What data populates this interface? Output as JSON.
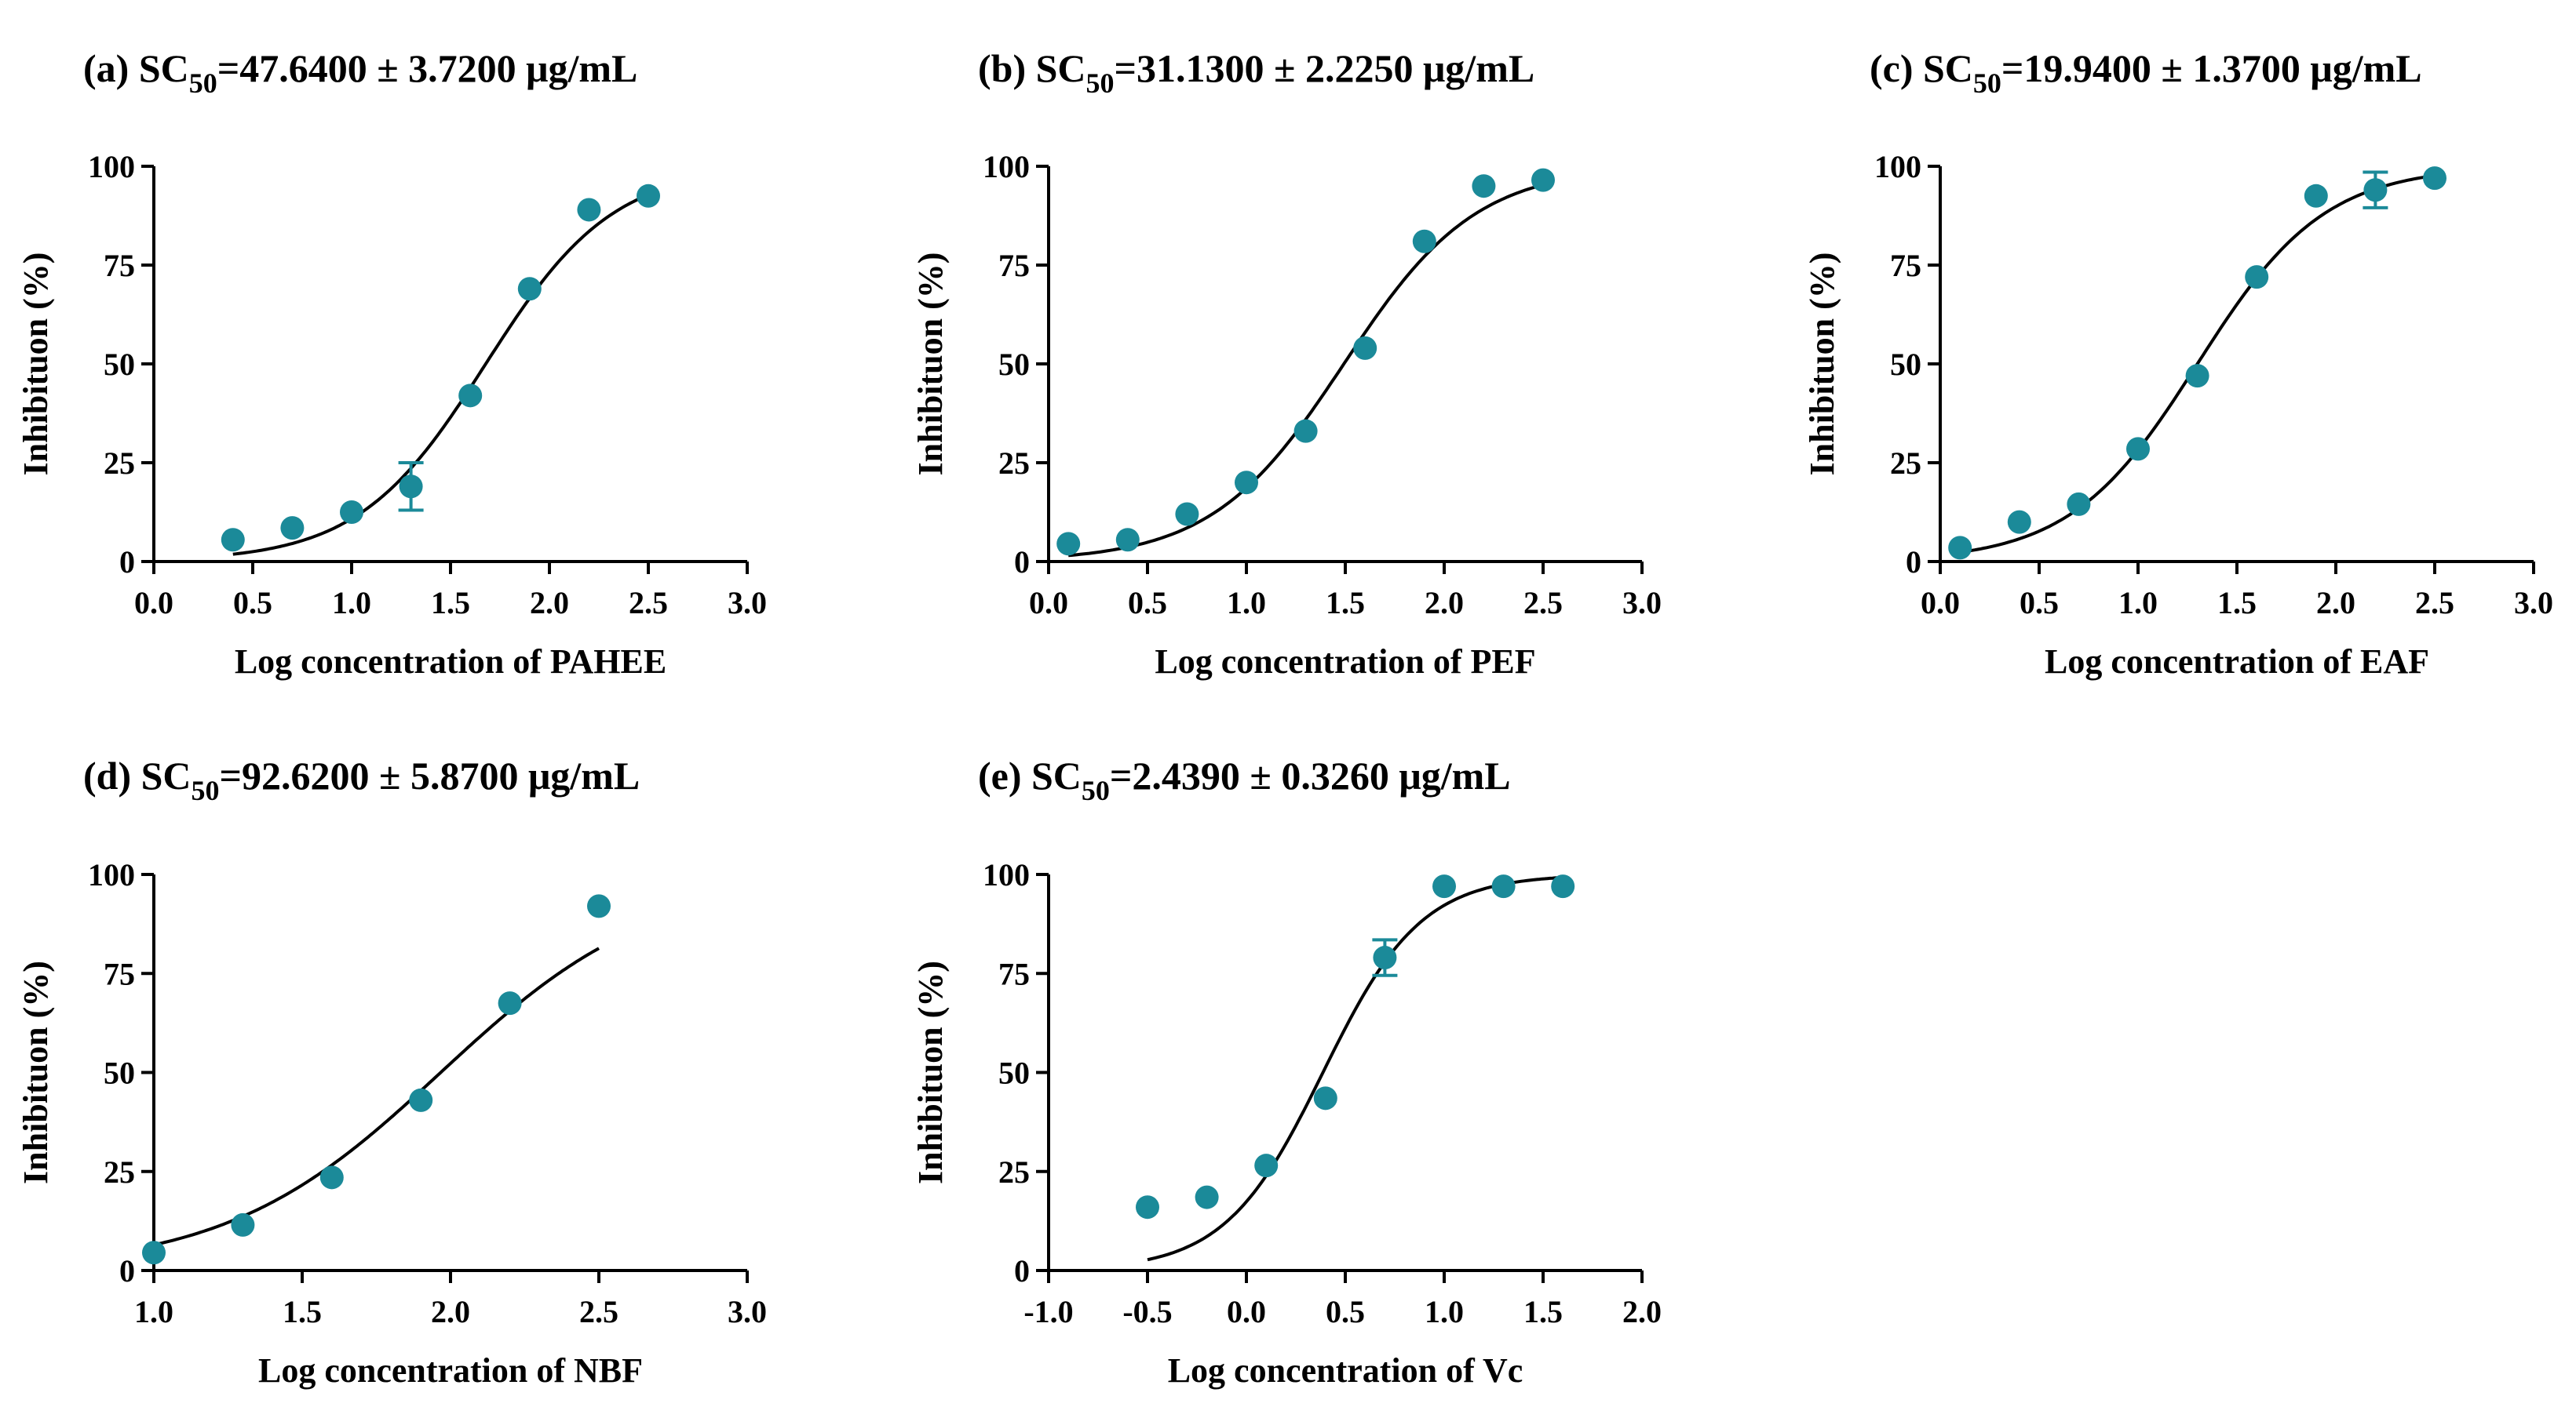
{
  "chart_data": [
    {
      "type": "scatter",
      "panel_label": "(a)",
      "title_prefix": "SC",
      "title_subscript": "50",
      "title_rest": "=47.6400 ± 3.7200 μg/mL",
      "xlabel": "Log concentration of PAHEE",
      "ylabel": "Inhibituon (%)",
      "xlim": [
        0.0,
        3.0
      ],
      "ylim": [
        0,
        100
      ],
      "x_ticks": [
        "0.0",
        "0.5",
        "1.0",
        "1.5",
        "2.0",
        "2.5",
        "3.0"
      ],
      "y_ticks": [
        "0",
        "25",
        "50",
        "75",
        "100"
      ],
      "x": [
        0.4,
        0.7,
        1.0,
        1.3,
        1.6,
        1.9,
        2.2,
        2.5
      ],
      "y": [
        5.5,
        8.5,
        12.5,
        19,
        42,
        69,
        89,
        92.5
      ],
      "err": [
        0,
        0,
        0,
        6,
        0,
        0,
        0,
        0
      ],
      "fit": {
        "bottom": 0,
        "top": 100,
        "logEC50": 1.678,
        "hill": 1.35,
        "x_range": [
          0.4,
          2.5
        ]
      },
      "marker_color": "#1b8a99"
    },
    {
      "type": "scatter",
      "panel_label": "(b)",
      "title_prefix": "SC",
      "title_subscript": "50",
      "title_rest": "=31.1300 ± 2.2250 μg/mL",
      "xlabel": "Log concentration of PEF",
      "ylabel": "Inhibituon (%)",
      "xlim": [
        0.0,
        3.0
      ],
      "ylim": [
        0,
        100
      ],
      "x_ticks": [
        "0.0",
        "0.5",
        "1.0",
        "1.5",
        "2.0",
        "2.5",
        "3.0"
      ],
      "y_ticks": [
        "0",
        "25",
        "50",
        "75",
        "100"
      ],
      "x": [
        0.1,
        0.4,
        0.7,
        1.0,
        1.3,
        1.6,
        1.9,
        2.2,
        2.5
      ],
      "y": [
        4.5,
        5.5,
        12,
        20,
        33,
        54,
        81,
        95,
        96.5
      ],
      "err": [
        0,
        0,
        0,
        0,
        0,
        0,
        0,
        0,
        0
      ],
      "fit": {
        "bottom": 0,
        "top": 100,
        "logEC50": 1.493,
        "hill": 1.3,
        "x_range": [
          0.1,
          2.5
        ]
      },
      "marker_color": "#1b8a99"
    },
    {
      "type": "scatter",
      "panel_label": "(c)",
      "title_prefix": "SC",
      "title_subscript": "50",
      "title_rest": "=19.9400 ± 1.3700 μg/mL",
      "xlabel": "Log concentration of EAF",
      "ylabel": "Inhibituon (%)",
      "xlim": [
        0.0,
        3.0
      ],
      "ylim": [
        0,
        100
      ],
      "x_ticks": [
        "0.0",
        "0.5",
        "1.0",
        "1.5",
        "2.0",
        "2.5",
        "3.0"
      ],
      "y_ticks": [
        "0",
        "25",
        "50",
        "75",
        "100"
      ],
      "x": [
        0.1,
        0.4,
        0.7,
        1.0,
        1.3,
        1.6,
        1.9,
        2.2,
        2.5
      ],
      "y": [
        3.5,
        10,
        14.5,
        28.5,
        47,
        72,
        92.5,
        94,
        97
      ],
      "err": [
        0,
        0,
        0,
        0,
        0,
        0,
        0,
        4.5,
        0
      ],
      "fit": {
        "bottom": 0,
        "top": 100,
        "logEC50": 1.3,
        "hill": 1.35,
        "x_range": [
          0.1,
          2.5
        ]
      },
      "marker_color": "#1b8a99"
    },
    {
      "type": "scatter",
      "panel_label": "(d)",
      "title_prefix": "SC",
      "title_subscript": "50",
      "title_rest": "=92.6200 ± 5.8700 μg/mL",
      "xlabel": "Log concentration of NBF",
      "ylabel": "Inhibituon (%)",
      "xlim": [
        1.0,
        3.0
      ],
      "ylim": [
        0,
        100
      ],
      "x_ticks": [
        "1.0",
        "1.5",
        "2.0",
        "2.5",
        "3.0"
      ],
      "y_ticks": [
        "0",
        "25",
        "50",
        "75",
        "100"
      ],
      "x": [
        1.0,
        1.3,
        1.6,
        1.9,
        2.2,
        2.5
      ],
      "y": [
        4.5,
        11.5,
        23.5,
        43,
        67.5,
        92
      ],
      "err": [
        0,
        0,
        0,
        0,
        0,
        0
      ],
      "fit": {
        "bottom": 0,
        "top": 100,
        "logEC50": 1.967,
        "hill": 1.2,
        "x_range": [
          1.0,
          2.5
        ]
      },
      "marker_color": "#1b8a99"
    },
    {
      "type": "scatter",
      "panel_label": "(e)",
      "title_prefix": "SC",
      "title_subscript": "50",
      "title_rest": "=2.4390 ± 0.3260 μg/mL",
      "xlabel": "Log concentration of Vc",
      "ylabel": "Inhibituon (%)",
      "xlim": [
        -1.0,
        2.0
      ],
      "ylim": [
        0,
        100
      ],
      "x_ticks": [
        "-1.0",
        "-0.5",
        "0.0",
        "0.5",
        "1.0",
        "1.5",
        "2.0"
      ],
      "y_ticks": [
        "0",
        "25",
        "50",
        "75",
        "100"
      ],
      "x": [
        -0.5,
        -0.2,
        0.1,
        0.4,
        0.7,
        1.0,
        1.3,
        1.6
      ],
      "y": [
        16,
        18.5,
        26.5,
        43.5,
        79,
        97,
        97,
        97
      ],
      "err": [
        0,
        0,
        0,
        0,
        4.5,
        0,
        0,
        0
      ],
      "fit": {
        "bottom": 0,
        "top": 100,
        "logEC50": 0.387,
        "hill": 1.75,
        "x_range": [
          -0.5,
          1.6
        ]
      },
      "marker_color": "#1b8a99"
    }
  ]
}
